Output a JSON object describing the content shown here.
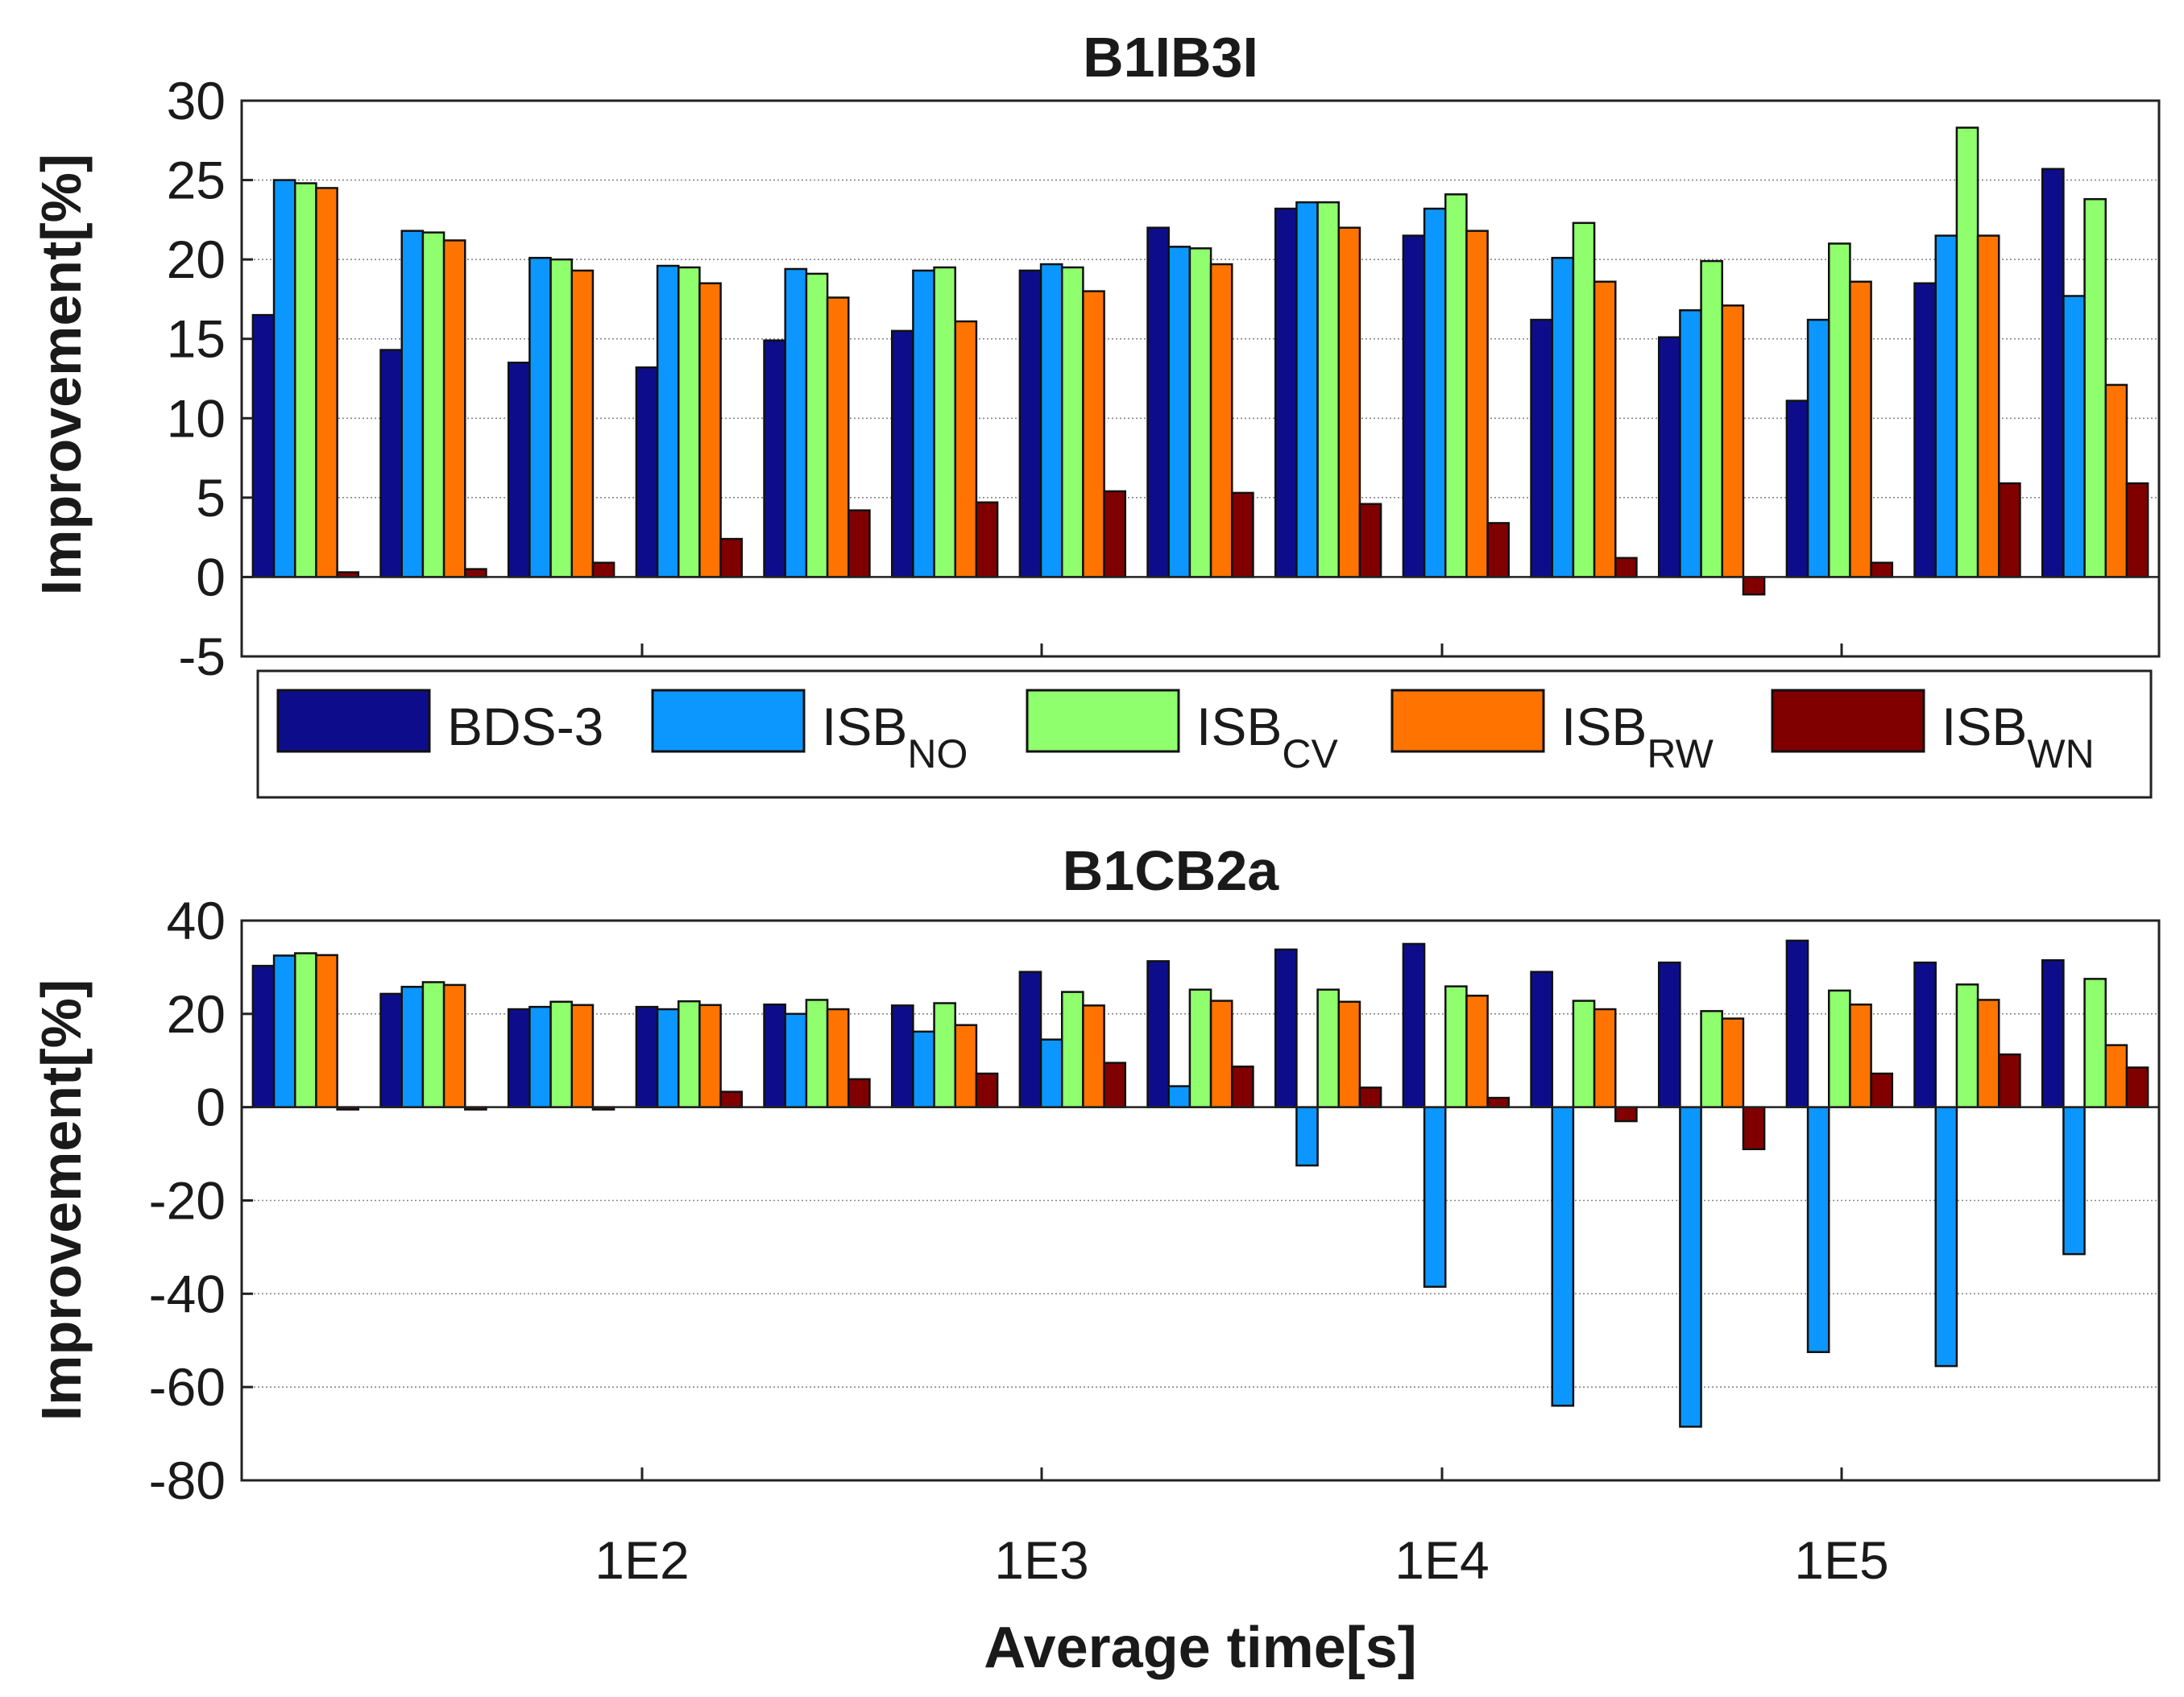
{
  "legend": [
    {
      "base": "BDS-3",
      "sub": "",
      "color": "#0d0d8c"
    },
    {
      "base": "ISB",
      "sub": "NO",
      "color": "#0b97ff"
    },
    {
      "base": "ISB",
      "sub": "CV",
      "color": "#90ff6e"
    },
    {
      "base": "ISB",
      "sub": "RW",
      "color": "#ff7400"
    },
    {
      "base": "ISB",
      "sub": "WN",
      "color": "#800000"
    }
  ],
  "chart_data": [
    {
      "type": "bar",
      "title": "B1IB3I",
      "ylabel": "Improvement[%]",
      "xlabel": "",
      "ylim": [
        -5,
        30
      ],
      "yticks": [
        "30",
        "25",
        "20",
        "15",
        "10",
        "5",
        "0",
        "-5"
      ],
      "ytick_values": [
        30,
        25,
        20,
        15,
        10,
        5,
        0,
        -5
      ],
      "grid": true,
      "num_groups": 15,
      "series": [
        {
          "name": "BDS-3",
          "values": [
            16.5,
            14.3,
            13.5,
            13.2,
            14.9,
            15.5,
            19.3,
            22.0,
            23.2,
            21.5,
            16.2,
            15.1,
            11.1,
            18.5,
            25.7
          ]
        },
        {
          "name": "ISB_NO",
          "values": [
            25.0,
            21.8,
            20.1,
            19.6,
            19.4,
            19.3,
            19.7,
            20.8,
            23.6,
            23.2,
            20.1,
            16.8,
            16.2,
            21.5,
            17.7
          ]
        },
        {
          "name": "ISB_CV",
          "values": [
            24.8,
            21.7,
            20.0,
            19.5,
            19.1,
            19.5,
            19.5,
            20.7,
            23.6,
            24.1,
            22.3,
            19.9,
            21.0,
            28.3,
            23.8
          ]
        },
        {
          "name": "ISB_RW",
          "values": [
            24.5,
            21.2,
            19.3,
            18.5,
            17.6,
            16.1,
            18.0,
            19.7,
            22.0,
            21.8,
            18.6,
            17.1,
            18.6,
            21.5,
            12.1
          ]
        },
        {
          "name": "ISB_WN",
          "values": [
            0.3,
            0.5,
            0.9,
            2.4,
            4.2,
            4.7,
            5.4,
            5.3,
            4.6,
            3.4,
            1.2,
            -1.1,
            0.9,
            5.9,
            5.9
          ]
        }
      ]
    },
    {
      "type": "bar",
      "title": "B1CB2a",
      "ylabel": "Improvement[%]",
      "xlabel": "Average time[s]",
      "ylim": [
        -80,
        40
      ],
      "yticks": [
        "40",
        "20",
        "0",
        "-20",
        "-40",
        "-60",
        "-80"
      ],
      "ytick_values": [
        40,
        20,
        0,
        -20,
        -40,
        -60,
        -80
      ],
      "xticks": [
        "1E2",
        "1E3",
        "1E4",
        "1E5"
      ],
      "grid": true,
      "num_groups": 15,
      "series": [
        {
          "name": "BDS-3",
          "values": [
            30.3,
            24.3,
            21.0,
            21.5,
            22.0,
            21.8,
            29.0,
            31.3,
            33.8,
            35.0,
            29.0,
            31.0,
            35.7,
            31.0,
            31.5
          ]
        },
        {
          "name": "ISB_NO",
          "values": [
            32.5,
            25.8,
            21.5,
            21.0,
            20.0,
            16.2,
            14.5,
            4.5,
            -12.5,
            -38.5,
            -64.0,
            -68.5,
            -52.5,
            -55.5,
            -31.5
          ]
        },
        {
          "name": "ISB_CV",
          "values": [
            33.0,
            26.8,
            22.6,
            22.7,
            23.0,
            22.3,
            24.7,
            25.2,
            25.2,
            25.9,
            22.8,
            20.6,
            25.0,
            26.3,
            27.5
          ]
        },
        {
          "name": "ISB_RW",
          "values": [
            32.6,
            26.2,
            21.9,
            21.9,
            21.0,
            17.6,
            21.8,
            22.8,
            22.6,
            23.9,
            21.0,
            19.0,
            22.0,
            23.0,
            13.3
          ]
        },
        {
          "name": "ISB_WN",
          "values": [
            -0.5,
            -0.5,
            -0.5,
            3.3,
            6.0,
            7.2,
            9.5,
            8.7,
            4.2,
            2.0,
            -3.0,
            -9.0,
            7.2,
            11.3,
            8.5
          ]
        }
      ]
    }
  ]
}
